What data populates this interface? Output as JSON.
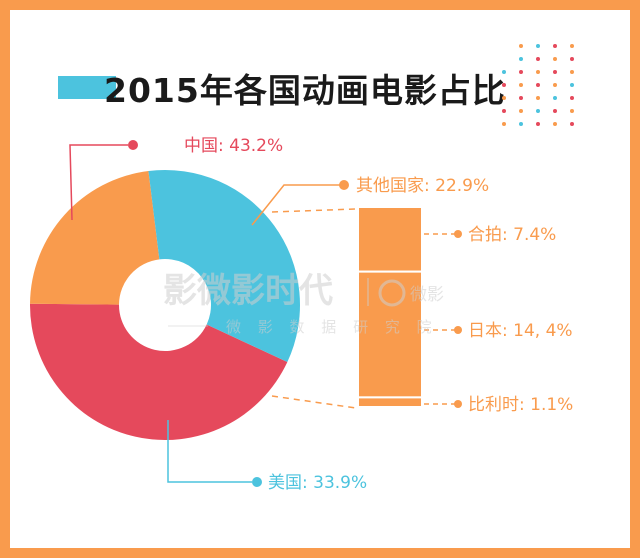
{
  "title": "2015年各国动画电影占比",
  "colors": {
    "frame": "#f99b4d",
    "title_bar": "#4cc3de",
    "china": "#e5495c",
    "usa": "#4cc3de",
    "others": "#f99b4d"
  },
  "watermark": {
    "main": "影微影时代",
    "sub": "微 影 数 据 研 究 院",
    "logo": "微影"
  },
  "chart_data": [
    {
      "type": "pie",
      "style": "donut",
      "categories": [
        "中国",
        "其他国家",
        "美国"
      ],
      "values": [
        43.2,
        22.9,
        33.9
      ],
      "labels": [
        "中国: 43.2%",
        "其他国家: 22.9%",
        "美国: 33.9%"
      ],
      "colors": [
        "#e5495c",
        "#f99b4d",
        "#4cc3de"
      ]
    },
    {
      "type": "bar",
      "style": "stacked-column breakdown of 其他国家",
      "categories": [
        "合拍",
        "日本",
        "比利时"
      ],
      "values": [
        7.4,
        14.4,
        1.1
      ],
      "labels": [
        "合拍: 7.4%",
        "日本: 14, 4%",
        "比利时: 1.1%"
      ],
      "color": "#f99b4d"
    }
  ]
}
